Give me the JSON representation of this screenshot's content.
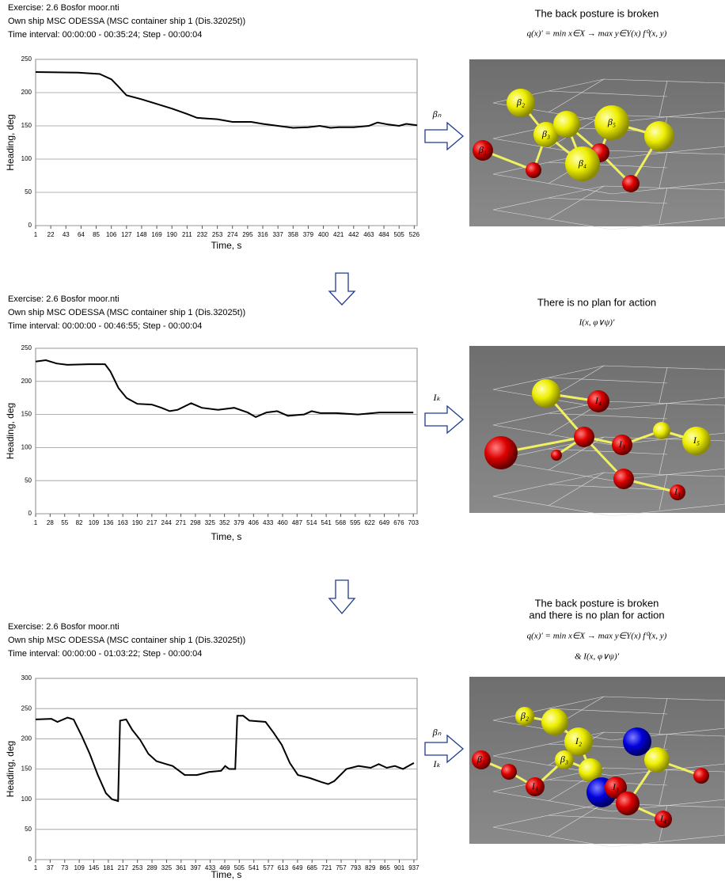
{
  "chart_data": [
    {
      "type": "line",
      "header": [
        "Exercise: 2.6 Bosfor moor.nti",
        "Own ship MSC ODESSA (MSC container ship 1 (Dis.32025t))",
        "Time interval: 00:00:00 - 00:35:24; Step - 00:00:04"
      ],
      "xlabel": "Time, s",
      "ylabel": "Heading, deg",
      "color": "#000000",
      "grid": true,
      "xlim": [
        1,
        530
      ],
      "xticks": [
        1,
        22,
        43,
        64,
        85,
        106,
        127,
        148,
        169,
        190,
        211,
        232,
        253,
        274,
        295,
        316,
        337,
        358,
        379,
        400,
        421,
        442,
        463,
        484,
        505,
        526
      ],
      "ylim": [
        0,
        250
      ],
      "yticks": [
        0,
        50,
        100,
        150,
        200,
        250
      ],
      "x": [
        1,
        60,
        90,
        106,
        115,
        127,
        148,
        169,
        190,
        211,
        225,
        253,
        274,
        300,
        316,
        337,
        358,
        379,
        395,
        410,
        421,
        442,
        463,
        475,
        490,
        505,
        515,
        530
      ],
      "values": [
        231,
        230,
        228,
        220,
        210,
        196,
        190,
        183,
        176,
        168,
        162,
        160,
        156,
        156,
        153,
        150,
        147,
        148,
        150,
        147,
        148,
        148,
        150,
        155,
        152,
        150,
        153,
        151
      ]
    },
    {
      "type": "line",
      "header": [
        "Exercise: 2.6 Bosfor moor.nti",
        "Own ship MSC ODESSA (MSC container ship 1 (Dis.32025t))",
        "Time interval: 00:00:00 - 00:46:55; Step - 00:00:04"
      ],
      "xlabel": "Time, s",
      "ylabel": "Heading, deg",
      "color": "#000000",
      "grid": true,
      "xlim": [
        1,
        710
      ],
      "xticks": [
        1,
        28,
        55,
        82,
        109,
        136,
        163,
        190,
        217,
        244,
        271,
        298,
        325,
        352,
        379,
        406,
        433,
        460,
        487,
        514,
        541,
        568,
        595,
        622,
        649,
        676,
        703
      ],
      "ylim": [
        0,
        250
      ],
      "yticks": [
        0,
        50,
        100,
        150,
        200,
        250
      ],
      "x": [
        1,
        20,
        40,
        60,
        100,
        130,
        140,
        155,
        170,
        190,
        217,
        235,
        250,
        265,
        290,
        310,
        340,
        370,
        395,
        410,
        430,
        450,
        470,
        500,
        514,
        530,
        560,
        600,
        640,
        703
      ],
      "values": [
        230,
        232,
        227,
        225,
        226,
        226,
        215,
        190,
        175,
        166,
        165,
        160,
        155,
        157,
        167,
        160,
        157,
        160,
        153,
        146,
        153,
        155,
        148,
        150,
        155,
        152,
        152,
        150,
        153,
        153
      ]
    },
    {
      "type": "line",
      "header": [
        "Exercise: 2.6 Bosfor moor.nti",
        "Own ship MSC ODESSA (MSC container ship 1 (Dis.32025t))",
        "Time interval: 00:00:00 - 01:03:22; Step - 00:00:04"
      ],
      "xlabel": "Time, s",
      "ylabel": "Heading, deg",
      "color": "#000000",
      "grid": true,
      "xlim": [
        1,
        945
      ],
      "xticks": [
        1,
        37,
        73,
        109,
        145,
        181,
        217,
        253,
        289,
        325,
        361,
        397,
        433,
        469,
        505,
        541,
        577,
        613,
        649,
        685,
        721,
        757,
        793,
        829,
        865,
        901,
        937
      ],
      "ylim": [
        0,
        300
      ],
      "yticks": [
        0,
        50,
        100,
        150,
        200,
        250,
        300
      ],
      "x": [
        1,
        40,
        55,
        80,
        95,
        115,
        135,
        155,
        175,
        190,
        205,
        210,
        225,
        240,
        260,
        280,
        300,
        325,
        340,
        370,
        400,
        430,
        460,
        470,
        480,
        495,
        500,
        515,
        530,
        570,
        590,
        610,
        630,
        650,
        680,
        710,
        725,
        740,
        770,
        800,
        830,
        850,
        870,
        890,
        910,
        937
      ],
      "values": [
        232,
        233,
        228,
        235,
        232,
        205,
        175,
        140,
        110,
        100,
        97,
        230,
        232,
        215,
        198,
        175,
        163,
        158,
        155,
        140,
        140,
        145,
        147,
        155,
        150,
        150,
        238,
        238,
        230,
        228,
        210,
        190,
        160,
        140,
        135,
        128,
        125,
        130,
        150,
        155,
        152,
        158,
        152,
        155,
        150,
        160
      ]
    }
  ],
  "scenes": [
    {
      "title": [
        "The back posture is broken"
      ],
      "formulas": [
        "q(x)′ = min x∈X → max y∈Y(x) f⁰(x, y)"
      ],
      "labels": [
        "β₂",
        "β₃",
        "β₅",
        "β₁",
        "β₄"
      ]
    },
    {
      "title": [
        "There is no plan for action"
      ],
      "formulas": [
        "I(x, φ∨ψ)′"
      ],
      "labels": [
        "I₄",
        "I₃",
        "I₅",
        "I₁"
      ]
    },
    {
      "title": [
        "The back posture is broken",
        "and there is no plan for action"
      ],
      "formulas": [
        "q(x)′ = min x∈X → max y∈Y(x) f⁰(x, y)",
        "&   I(x, φ∨ψ)′"
      ],
      "labels": [
        "β₂",
        "I₂",
        "β₃",
        "β₁",
        "I₁",
        "I₃",
        "I₄"
      ]
    }
  ],
  "arrows": [
    [
      "βₙ"
    ],
    [
      "Iₖ"
    ],
    [
      "βₙ",
      "Iₖ"
    ]
  ]
}
